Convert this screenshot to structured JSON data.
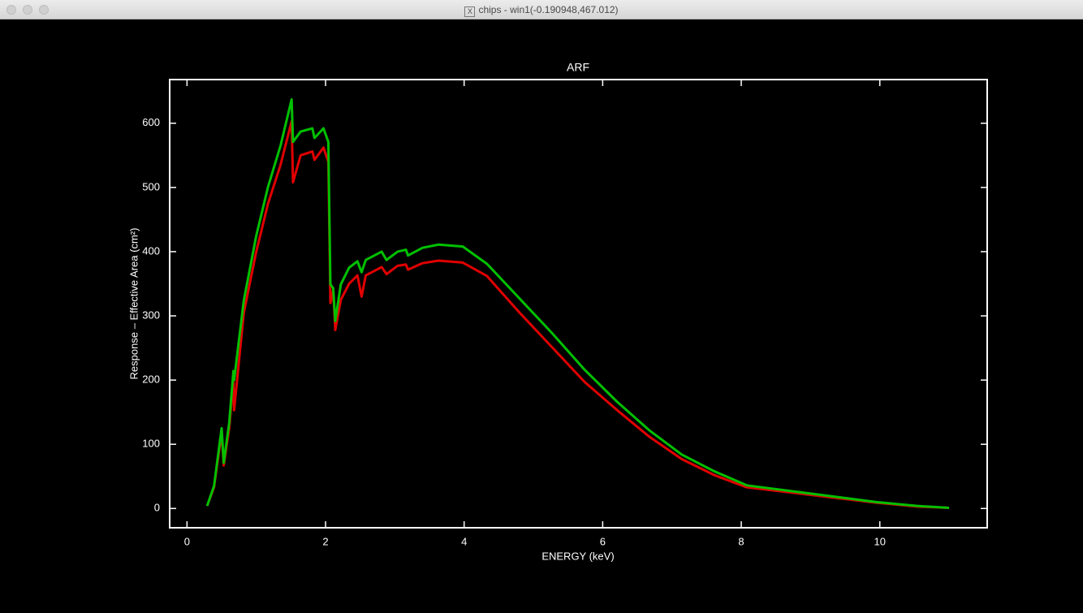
{
  "window": {
    "title": "chips - win1(-0.190948,467.012)"
  },
  "chart_data": {
    "type": "line",
    "title": "ARF",
    "x_label": "ENERGY (keV)",
    "y_label": "Response – Effective Area (cm²)",
    "x": [
      0.29,
      0.39,
      0.5,
      0.53,
      0.61,
      0.67,
      0.68,
      0.82,
      1.0,
      1.17,
      1.35,
      1.51,
      1.53,
      1.64,
      1.81,
      1.84,
      1.97,
      2.04,
      2.07,
      2.11,
      2.14,
      2.22,
      2.34,
      2.46,
      2.52,
      2.58,
      2.81,
      2.88,
      3.04,
      3.16,
      3.19,
      3.4,
      3.63,
      3.98,
      4.33,
      4.8,
      5.27,
      5.74,
      6.21,
      6.67,
      7.14,
      7.61,
      8.08,
      9.02,
      9.95,
      10.54,
      11.0
    ],
    "series": [
      {
        "color": "#e00000",
        "values": [
          4,
          33,
          118,
          67,
          126,
          201,
          153,
          305,
          400,
          475,
          535,
          603,
          508,
          550,
          556,
          543,
          562,
          540,
          320,
          340,
          278,
          325,
          350,
          363,
          330,
          363,
          376,
          365,
          378,
          380,
          372,
          382,
          386,
          383,
          362,
          305,
          251,
          197,
          153,
          112,
          77,
          52,
          33,
          21,
          9,
          3,
          1
        ]
      },
      {
        "color": "#00c000",
        "values": [
          4,
          35,
          125,
          71,
          134,
          214,
          200,
          324,
          425,
          501,
          565,
          637,
          571,
          587,
          592,
          577,
          592,
          571,
          349,
          343,
          292,
          349,
          375,
          385,
          368,
          387,
          400,
          387,
          400,
          403,
          394,
          406,
          411,
          408,
          381,
          327,
          273,
          216,
          166,
          122,
          84,
          58,
          36,
          23,
          10,
          4,
          1
        ]
      }
    ],
    "xlim": [
      -0.25,
      11.55
    ],
    "ylim": [
      -30,
      668
    ],
    "xticks": [
      0,
      2,
      4,
      6,
      8,
      10
    ],
    "yticks": [
      0,
      100,
      200,
      300,
      400,
      500,
      600
    ]
  }
}
